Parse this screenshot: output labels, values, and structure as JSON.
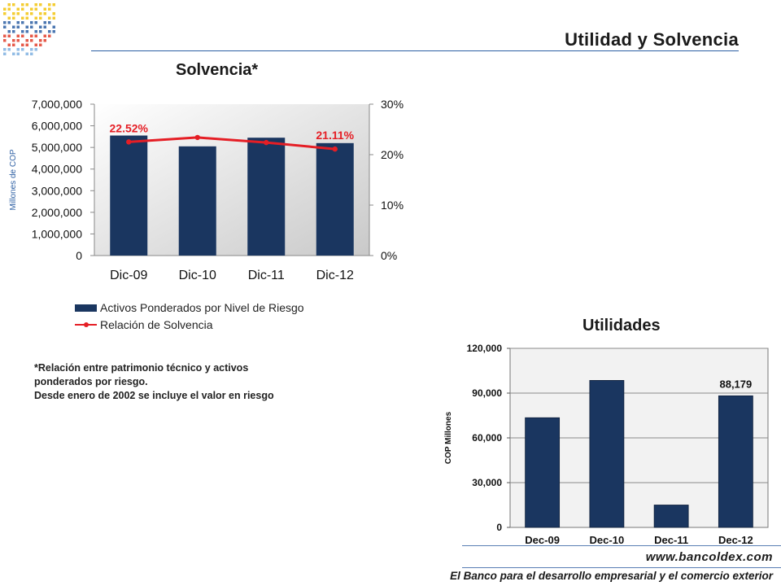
{
  "header": {
    "title": "Utilidad y Solvencia"
  },
  "footer": {
    "url": "www.bancoldex.com",
    "tagline": "El Banco para el desarrollo empresarial y el comercio exterior"
  },
  "footnote": {
    "line1": "*Relación entre patrimonio técnico y activos",
    "line2": "ponderados por riesgo.",
    "line3": "Desde enero de 2002 se incluye el valor en riesgo"
  },
  "colors": {
    "bar": "#1a3660",
    "line": "#e51e25",
    "accent": "#2d5fa3"
  },
  "chart_data": [
    {
      "type": "bar",
      "title": "Solvencia*",
      "categories": [
        "Dic-09",
        "Dic-10",
        "Dic-11",
        "Dic-12"
      ],
      "ylabel": "Millones de COP",
      "ylim": [
        0,
        7000000
      ],
      "yticks": [
        "0",
        "1,000,000",
        "2,000,000",
        "3,000,000",
        "4,000,000",
        "5,000,000",
        "6,000,000",
        "7,000,000"
      ],
      "y2lim": [
        0,
        30
      ],
      "y2ticks": [
        "0%",
        "10%",
        "20%",
        "30%"
      ],
      "series": [
        {
          "name": "Activos Ponderados por Nivel de Riesgo",
          "type": "bar",
          "axis": "left",
          "values": [
            5550000,
            5050000,
            5450000,
            5200000
          ]
        },
        {
          "name": "Relación de Solvencia",
          "type": "line",
          "axis": "right",
          "values": [
            22.52,
            23.4,
            22.4,
            21.11
          ]
        }
      ],
      "data_labels": [
        {
          "index": 0,
          "text": "22.52%"
        },
        {
          "index": 3,
          "text": "21.11%"
        }
      ],
      "legend": "bottom",
      "grid": false
    },
    {
      "type": "bar",
      "title": "Utilidades",
      "categories": [
        "Dec-09",
        "Dec-10",
        "Dec-11",
        "Dec-12"
      ],
      "ylabel": "COP Millones",
      "ylim": [
        0,
        120000
      ],
      "yticks": [
        "0",
        "30,000",
        "60,000",
        "90,000",
        "120,000"
      ],
      "series": [
        {
          "type": "bar",
          "values": [
            73500,
            98500,
            15000,
            88179
          ]
        }
      ],
      "data_labels": [
        {
          "index": 3,
          "text": "88,179"
        }
      ],
      "grid": true
    }
  ]
}
